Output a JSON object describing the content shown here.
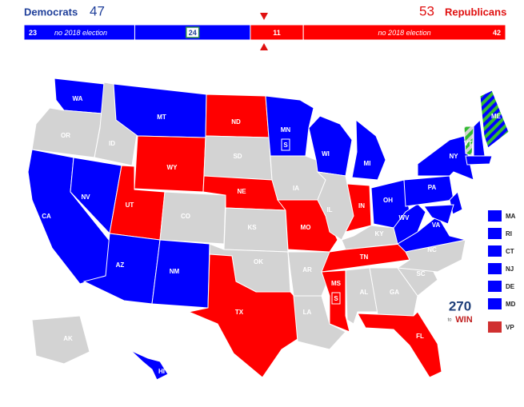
{
  "header": {
    "dem_label": "Democrats",
    "dem_total": "47",
    "rep_total": "53",
    "rep_label": "Republicans"
  },
  "bar": [
    {
      "count": "23",
      "note": "no 2018 election",
      "color": "#0000ff"
    },
    {
      "count": "24",
      "color": "#0000ff"
    },
    {
      "count": "11",
      "color": "#ff0000"
    },
    {
      "count": "42",
      "note": "no 2018 election",
      "color": "#ff0000"
    }
  ],
  "states": [
    {
      "label": "WA",
      "color": "#0000ff"
    },
    {
      "label": "OR",
      "color": "#d3d3d3"
    },
    {
      "label": "CA",
      "color": "#0000ff"
    },
    {
      "label": "NV",
      "color": "#0000ff"
    },
    {
      "label": "ID",
      "color": "#d3d3d3"
    },
    {
      "label": "MT",
      "color": "#0000ff"
    },
    {
      "label": "WY",
      "color": "#ff0000"
    },
    {
      "label": "UT",
      "color": "#ff0000"
    },
    {
      "label": "AZ",
      "color": "#0000ff"
    },
    {
      "label": "CO",
      "color": "#d3d3d3"
    },
    {
      "label": "NM",
      "color": "#0000ff"
    },
    {
      "label": "ND",
      "color": "#ff0000"
    },
    {
      "label": "SD",
      "color": "#d3d3d3"
    },
    {
      "label": "NE",
      "color": "#ff0000"
    },
    {
      "label": "KS",
      "color": "#d3d3d3"
    },
    {
      "label": "OK",
      "color": "#d3d3d3"
    },
    {
      "label": "TX",
      "color": "#ff0000"
    },
    {
      "label": "MN",
      "color": "#0000ff",
      "special": "S"
    },
    {
      "label": "IA",
      "color": "#d3d3d3"
    },
    {
      "label": "MO",
      "color": "#ff0000"
    },
    {
      "label": "AR",
      "color": "#d3d3d3"
    },
    {
      "label": "LA",
      "color": "#d3d3d3"
    },
    {
      "label": "WI",
      "color": "#0000ff"
    },
    {
      "label": "IL",
      "color": "#d3d3d3"
    },
    {
      "label": "MI",
      "color": "#0000ff"
    },
    {
      "label": "IN",
      "color": "#ff0000"
    },
    {
      "label": "OH",
      "color": "#0000ff"
    },
    {
      "label": "KY",
      "color": "#d3d3d3"
    },
    {
      "label": "TN",
      "color": "#ff0000"
    },
    {
      "label": "MS",
      "color": "#ff0000",
      "special": "S"
    },
    {
      "label": "AL",
      "color": "#d3d3d3"
    },
    {
      "label": "GA",
      "color": "#d3d3d3"
    },
    {
      "label": "FL",
      "color": "#ff0000"
    },
    {
      "label": "SC",
      "color": "#d3d3d3"
    },
    {
      "label": "NC",
      "color": "#d3d3d3"
    },
    {
      "label": "VA",
      "color": "#0000ff"
    },
    {
      "label": "WV",
      "color": "#0000ff"
    },
    {
      "label": "PA",
      "color": "#0000ff"
    },
    {
      "label": "NY",
      "color": "#0000ff"
    },
    {
      "label": "VT",
      "color": [
        "#d3d3d3",
        "#33bb33"
      ]
    },
    {
      "label": null,
      "color": "#0000ff"
    },
    {
      "label": "ME",
      "color": [
        "#0000ff",
        "#33bb33"
      ]
    },
    {
      "label": null,
      "color": "#0000ff"
    },
    {
      "label": null,
      "color": "#0000ff"
    },
    {
      "label": null,
      "color": "#0000ff"
    },
    {
      "label": "AK",
      "color": "#d3d3d3"
    },
    {
      "label": "HI",
      "color": "#0000ff"
    }
  ],
  "sidebar": [
    {
      "label": "MA",
      "color": "#0000ff"
    },
    {
      "label": "RI",
      "color": "#0000ff"
    },
    {
      "label": "CT",
      "color": "#0000ff"
    },
    {
      "label": "NJ",
      "color": "#0000ff"
    },
    {
      "label": "DE",
      "color": "#0000ff"
    },
    {
      "label": "MD",
      "color": "#0000ff"
    },
    {
      "label": "VP",
      "color": "#d03030"
    }
  ],
  "logo": {
    "number": "270",
    "to": "to",
    "word": "WIN"
  }
}
